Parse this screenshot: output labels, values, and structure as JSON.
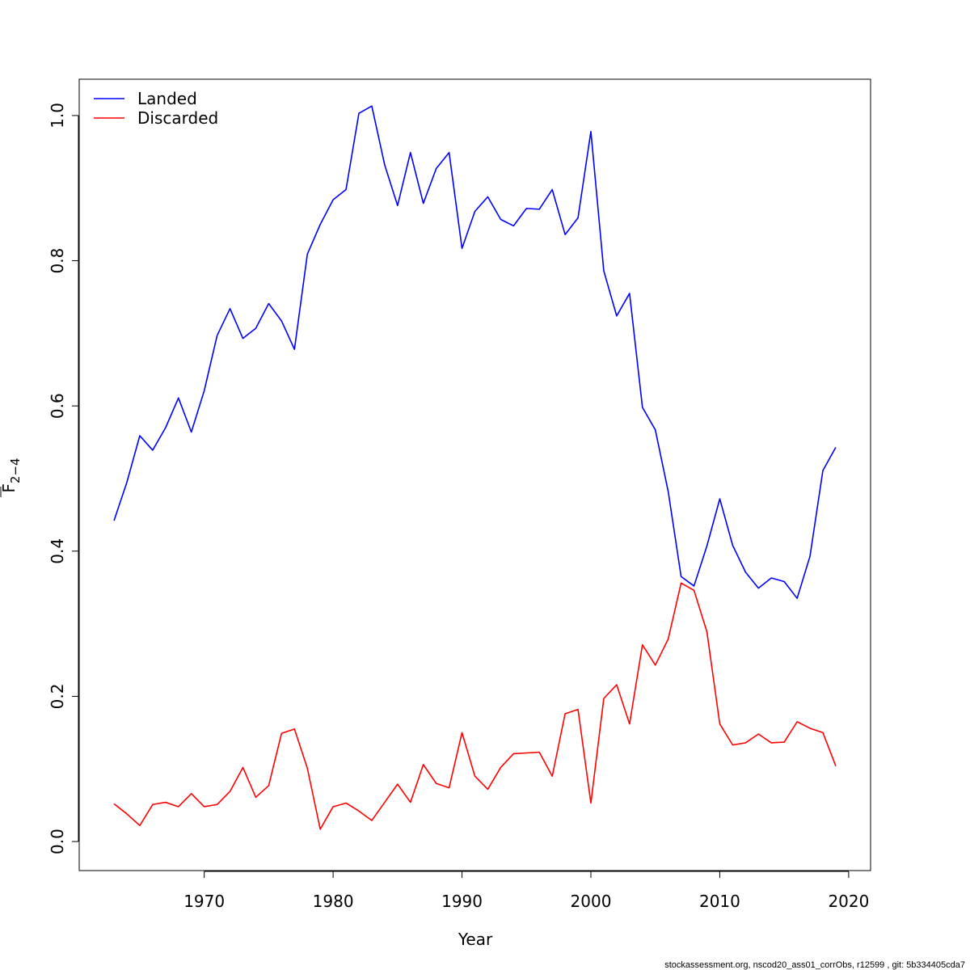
{
  "chart_data": {
    "type": "line",
    "xlabel": "Year",
    "ylabel_main": "F",
    "ylabel_sub": "2−4",
    "xlim": [
      1960.3,
      2021.7
    ],
    "ylim": [
      -0.04,
      1.05
    ],
    "xticks": [
      1970,
      1980,
      1990,
      2000,
      2010,
      2020
    ],
    "yticks": [
      0.0,
      0.2,
      0.4,
      0.6,
      0.8,
      1.0
    ],
    "xtick_labels": [
      "1970",
      "1980",
      "1990",
      "2000",
      "2010",
      "2020"
    ],
    "ytick_labels": [
      "0.0",
      "0.2",
      "0.4",
      "0.6",
      "0.8",
      "1.0"
    ],
    "legend_position": "top-left",
    "grid": false,
    "x": [
      1963,
      1964,
      1965,
      1966,
      1967,
      1968,
      1969,
      1970,
      1971,
      1972,
      1973,
      1974,
      1975,
      1976,
      1977,
      1978,
      1979,
      1980,
      1981,
      1982,
      1983,
      1984,
      1985,
      1986,
      1987,
      1988,
      1989,
      1990,
      1991,
      1992,
      1993,
      1994,
      1995,
      1996,
      1997,
      1998,
      1999,
      2000,
      2001,
      2002,
      2003,
      2004,
      2005,
      2006,
      2007,
      2008,
      2009,
      2010,
      2011,
      2012,
      2013,
      2014,
      2015,
      2016,
      2017,
      2018,
      2019
    ],
    "series": [
      {
        "name": "Landed",
        "color": "#0000ff",
        "values": [
          0.442,
          0.495,
          0.559,
          0.539,
          0.57,
          0.611,
          0.564,
          0.621,
          0.697,
          0.734,
          0.693,
          0.707,
          0.741,
          0.717,
          0.678,
          0.809,
          0.85,
          0.884,
          0.898,
          1.003,
          1.013,
          0.932,
          0.876,
          0.949,
          0.879,
          0.927,
          0.949,
          0.817,
          0.868,
          0.888,
          0.857,
          0.848,
          0.872,
          0.871,
          0.898,
          0.836,
          0.859,
          0.978,
          0.786,
          0.724,
          0.755,
          0.598,
          0.567,
          0.482,
          0.365,
          0.352,
          0.407,
          0.472,
          0.408,
          0.371,
          0.349,
          0.363,
          0.358,
          0.335,
          0.393,
          0.511,
          0.543
        ]
      },
      {
        "name": "Discarded",
        "color": "#ff0000",
        "values": [
          0.052,
          0.038,
          0.022,
          0.051,
          0.054,
          0.048,
          0.066,
          0.048,
          0.051,
          0.069,
          0.102,
          0.061,
          0.077,
          0.149,
          0.155,
          0.101,
          0.017,
          0.048,
          0.053,
          0.042,
          0.029,
          0.054,
          0.079,
          0.054,
          0.106,
          0.08,
          0.074,
          0.15,
          0.09,
          0.072,
          0.102,
          0.121,
          0.122,
          0.123,
          0.09,
          0.176,
          0.182,
          0.053,
          0.197,
          0.216,
          0.162,
          0.271,
          0.243,
          0.279,
          0.356,
          0.346,
          0.289,
          0.162,
          0.133,
          0.136,
          0.148,
          0.136,
          0.137,
          0.165,
          0.156,
          0.15,
          0.104
        ]
      }
    ]
  },
  "footer": "stockassessment.org, nscod20_ass01_corrObs, r12599 , git: 5b334405cda7"
}
